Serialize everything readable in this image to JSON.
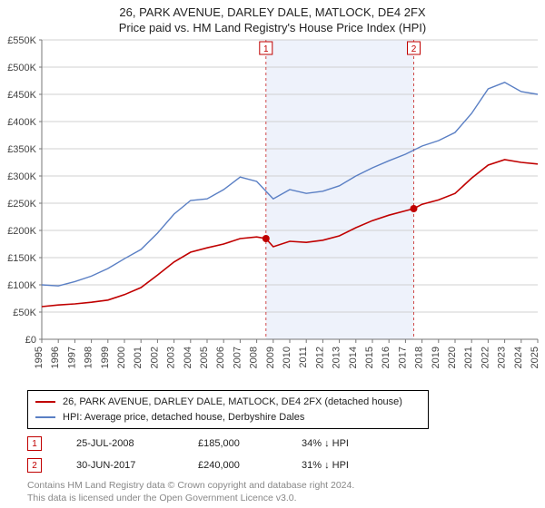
{
  "title_line1": "26, PARK AVENUE, DARLEY DALE, MATLOCK, DE4 2FX",
  "title_line2": "Price paid vs. HM Land Registry's House Price Index (HPI)",
  "chart": {
    "type": "line",
    "background_color": "#ffffff",
    "grid_color": "#d0d0d0",
    "axis_color": "#777777",
    "tick_fontsize": 11,
    "tick_color": "#444444",
    "ylim": [
      0,
      550000
    ],
    "ytick_step": 50000,
    "ytick_labels": [
      "£0",
      "£50K",
      "£100K",
      "£150K",
      "£200K",
      "£250K",
      "£300K",
      "£350K",
      "£400K",
      "£450K",
      "£500K",
      "£550K"
    ],
    "x_years": [
      1995,
      1996,
      1997,
      1998,
      1999,
      2000,
      2001,
      2002,
      2003,
      2004,
      2005,
      2006,
      2007,
      2008,
      2009,
      2010,
      2011,
      2012,
      2013,
      2014,
      2015,
      2016,
      2017,
      2018,
      2019,
      2020,
      2021,
      2022,
      2023,
      2024,
      2025
    ],
    "shaded_band": {
      "x_start": 2008.56,
      "x_end": 2017.5,
      "fill": "#eef2fb"
    },
    "series": [
      {
        "name": "property",
        "color": "#c00000",
        "line_width": 1.6,
        "points": [
          [
            1995.0,
            60000
          ],
          [
            1996.0,
            63000
          ],
          [
            1997.0,
            65000
          ],
          [
            1998.0,
            68000
          ],
          [
            1999.0,
            72000
          ],
          [
            2000.0,
            82000
          ],
          [
            2001.0,
            95000
          ],
          [
            2002.0,
            118000
          ],
          [
            2003.0,
            142000
          ],
          [
            2004.0,
            160000
          ],
          [
            2005.0,
            168000
          ],
          [
            2006.0,
            175000
          ],
          [
            2007.0,
            185000
          ],
          [
            2008.0,
            188000
          ],
          [
            2008.56,
            185000
          ],
          [
            2009.0,
            170000
          ],
          [
            2010.0,
            180000
          ],
          [
            2011.0,
            178000
          ],
          [
            2012.0,
            182000
          ],
          [
            2013.0,
            190000
          ],
          [
            2014.0,
            205000
          ],
          [
            2015.0,
            218000
          ],
          [
            2016.0,
            228000
          ],
          [
            2017.0,
            236000
          ],
          [
            2017.5,
            240000
          ],
          [
            2018.0,
            248000
          ],
          [
            2019.0,
            256000
          ],
          [
            2020.0,
            268000
          ],
          [
            2021.0,
            296000
          ],
          [
            2022.0,
            320000
          ],
          [
            2023.0,
            330000
          ],
          [
            2024.0,
            325000
          ],
          [
            2025.0,
            322000
          ]
        ]
      },
      {
        "name": "hpi",
        "color": "#5a7fc4",
        "line_width": 1.4,
        "points": [
          [
            1995.0,
            100000
          ],
          [
            1996.0,
            98000
          ],
          [
            1997.0,
            106000
          ],
          [
            1998.0,
            116000
          ],
          [
            1999.0,
            130000
          ],
          [
            2000.0,
            148000
          ],
          [
            2001.0,
            165000
          ],
          [
            2002.0,
            195000
          ],
          [
            2003.0,
            230000
          ],
          [
            2004.0,
            255000
          ],
          [
            2005.0,
            258000
          ],
          [
            2006.0,
            275000
          ],
          [
            2007.0,
            298000
          ],
          [
            2008.0,
            290000
          ],
          [
            2009.0,
            258000
          ],
          [
            2010.0,
            275000
          ],
          [
            2011.0,
            268000
          ],
          [
            2012.0,
            272000
          ],
          [
            2013.0,
            282000
          ],
          [
            2014.0,
            300000
          ],
          [
            2015.0,
            315000
          ],
          [
            2016.0,
            328000
          ],
          [
            2017.0,
            340000
          ],
          [
            2018.0,
            355000
          ],
          [
            2019.0,
            365000
          ],
          [
            2020.0,
            380000
          ],
          [
            2021.0,
            415000
          ],
          [
            2022.0,
            460000
          ],
          [
            2023.0,
            472000
          ],
          [
            2024.0,
            455000
          ],
          [
            2025.0,
            450000
          ]
        ]
      }
    ],
    "markers": [
      {
        "label": "1",
        "x": 2008.56,
        "y": 185000,
        "dot_color": "#c00000",
        "box_y_offset": -1
      },
      {
        "label": "2",
        "x": 2017.5,
        "y": 240000,
        "dot_color": "#c00000",
        "box_y_offset": -1
      }
    ],
    "marker_box_border": "#c00000",
    "marker_box_text_color": "#c00000",
    "marker_line_color": "#c00000",
    "marker_line_dash": "3,3"
  },
  "legend": {
    "series": [
      {
        "color": "#c00000",
        "label": "26, PARK AVENUE, DARLEY DALE, MATLOCK, DE4 2FX (detached house)"
      },
      {
        "color": "#5a7fc4",
        "label": "HPI: Average price, detached house, Derbyshire Dales"
      }
    ]
  },
  "sales": [
    {
      "marker": "1",
      "date": "25-JUL-2008",
      "price": "£185,000",
      "diff": "34% ↓ HPI"
    },
    {
      "marker": "2",
      "date": "30-JUN-2017",
      "price": "£240,000",
      "diff": "31% ↓ HPI"
    }
  ],
  "attribution_line1": "Contains HM Land Registry data © Crown copyright and database right 2024.",
  "attribution_line2": "This data is licensed under the Open Government Licence v3.0."
}
